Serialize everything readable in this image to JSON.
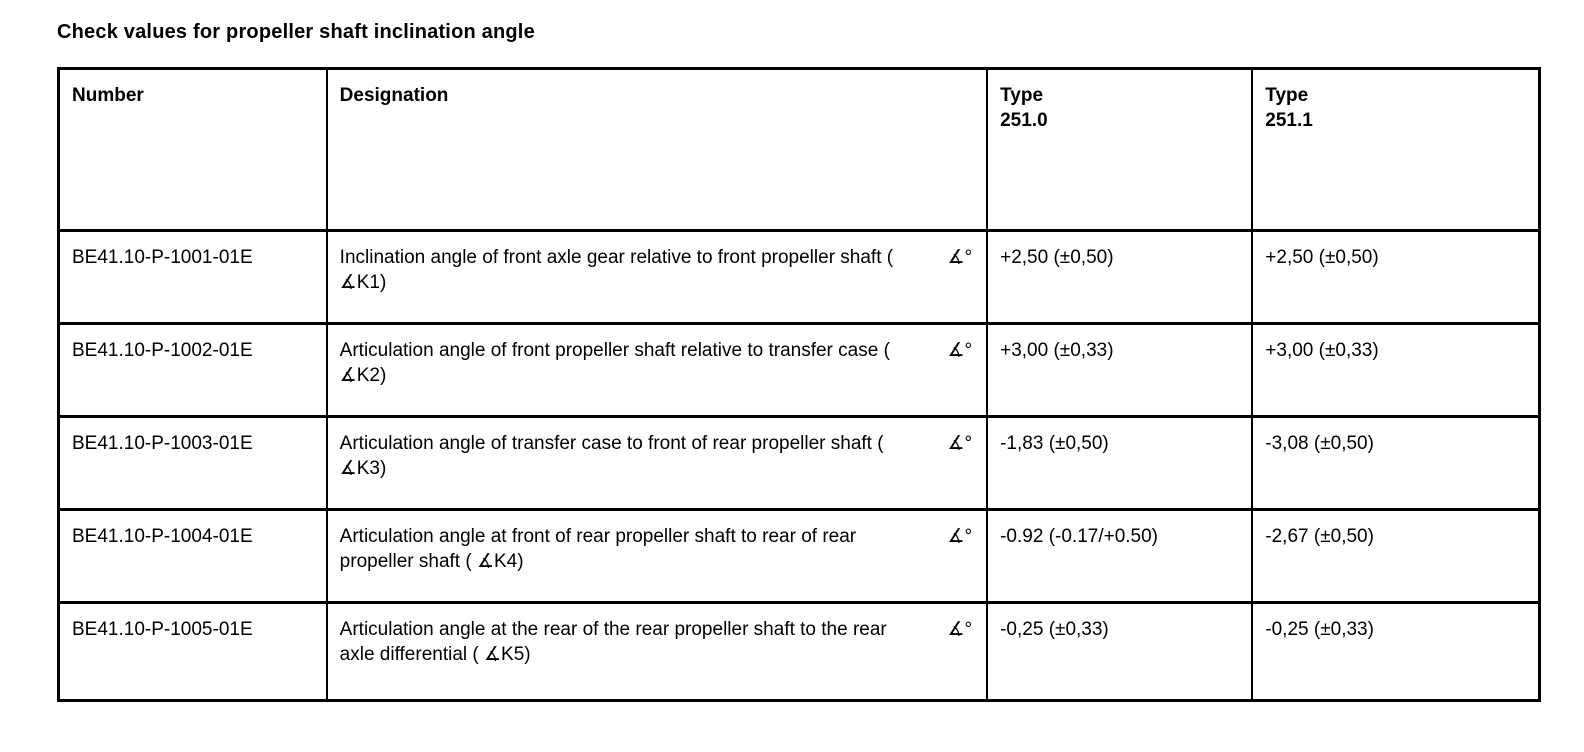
{
  "title": "Check values for propeller shaft inclination angle",
  "table": {
    "unit_symbol": "∡°",
    "columns": [
      {
        "label": "Number"
      },
      {
        "label": "Designation"
      },
      {
        "label": "Type",
        "sub": "251.0"
      },
      {
        "label": "Type",
        "sub": "251.1"
      }
    ],
    "rows": [
      {
        "number": "BE41.10-P-1001-01E",
        "designation": "Inclination angle of front axle gear relative to front propeller shaft ( ∡K1)",
        "type_251_0": "+2,50 (±0,50)",
        "type_251_1": "+2,50 (±0,50)"
      },
      {
        "number": "BE41.10-P-1002-01E",
        "designation": "Articulation angle of front propeller shaft relative to transfer case ( ∡K2)",
        "type_251_0": "+3,00 (±0,33)",
        "type_251_1": "+3,00 (±0,33)"
      },
      {
        "number": "BE41.10-P-1003-01E",
        "designation": "Articulation angle of transfer case to front of rear propeller shaft ( ∡K3)",
        "type_251_0": "-1,83 (±0,50)",
        "type_251_1": "-3,08 (±0,50)"
      },
      {
        "number": "BE41.10-P-1004-01E",
        "designation": "Articulation angle at front of rear propeller shaft to rear of rear propeller shaft ( ∡K4)",
        "type_251_0": "-0.92 (-0.17/+0.50)",
        "type_251_1": "-2,67 (±0,50)"
      },
      {
        "number": "BE41.10-P-1005-01E",
        "designation": "Articulation angle at the rear of the rear propeller shaft to the rear axle differential ( ∡K5)",
        "type_251_0": "-0,25 (±0,33)",
        "type_251_1": "-0,25 (±0,33)"
      }
    ]
  }
}
